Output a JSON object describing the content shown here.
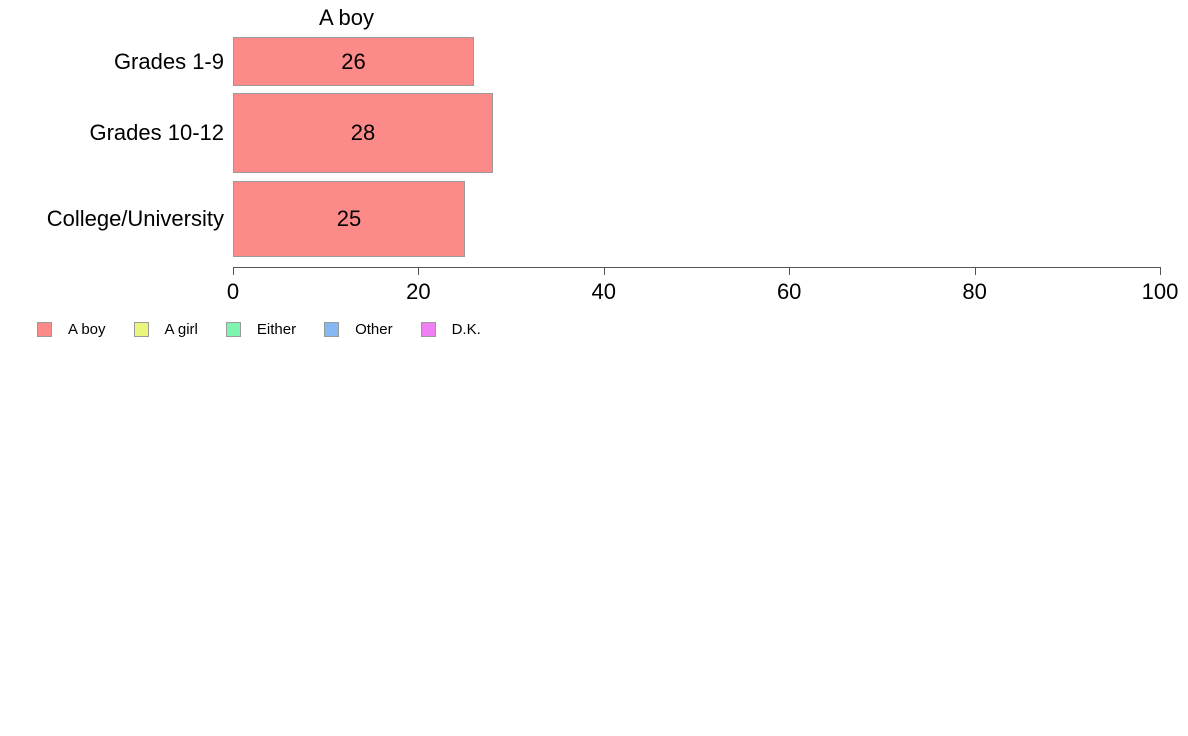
{
  "chart_data": {
    "type": "bar",
    "orientation": "horizontal",
    "title": "A boy",
    "categories": [
      "Grades 1-9",
      "Grades 10-12",
      "College/University"
    ],
    "values": [
      26,
      28,
      25
    ],
    "value_labels": [
      "26",
      "28",
      "25"
    ],
    "xlabel": "",
    "ylabel": "",
    "xlim": [
      0,
      100
    ],
    "x_ticks": [
      0,
      20,
      40,
      60,
      80,
      100
    ],
    "grid": "off",
    "legend_position": "bottom-left",
    "bar_color": "#fc8a89",
    "bar_border_color": "#9a9a9a",
    "legend": [
      {
        "label": "A boy",
        "color": "#fc8a89"
      },
      {
        "label": "A girl",
        "color": "#e9f57d"
      },
      {
        "label": "Either",
        "color": "#7df5b0"
      },
      {
        "label": "Other",
        "color": "#85b8f2"
      },
      {
        "label": "D.K.",
        "color": "#ef7ff2"
      }
    ]
  }
}
